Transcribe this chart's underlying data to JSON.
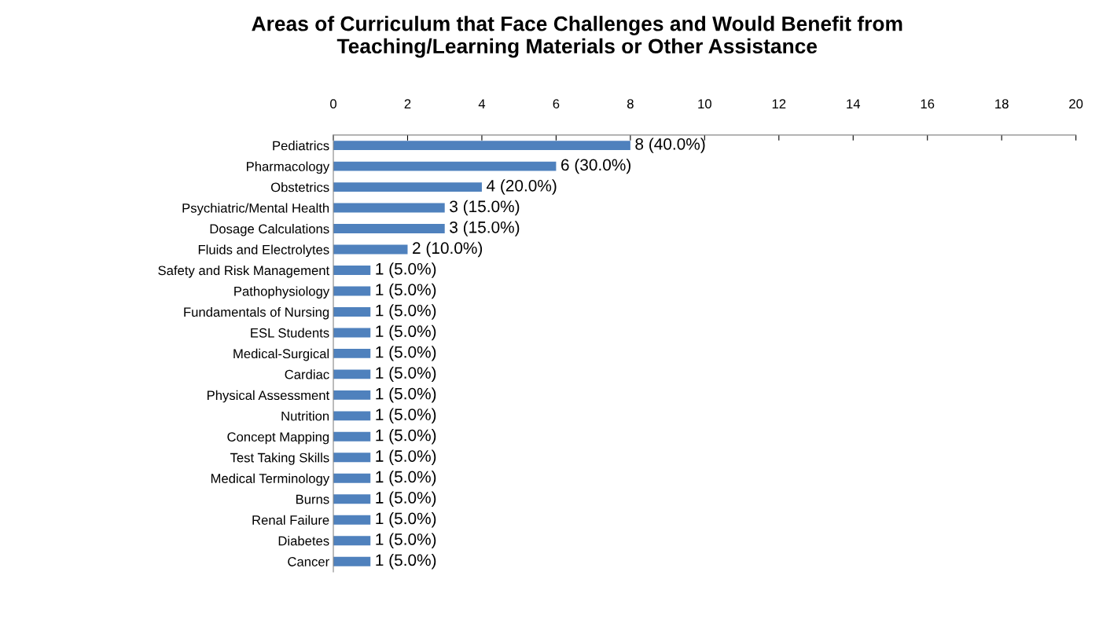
{
  "chart_data": {
    "type": "bar",
    "orientation": "horizontal",
    "title": "Areas of Curriculum that Face Challenges and Would Benefit from\nTeaching/Learning Materials or Other Assistance",
    "categories": [
      "Pediatrics",
      "Pharmacology",
      "Obstetrics",
      "Psychiatric/Mental Health",
      "Dosage Calculations",
      "Fluids and Electrolytes",
      "Safety and Risk Management",
      "Pathophysiology",
      "Fundamentals of Nursing",
      "ESL Students",
      "Medical-Surgical",
      "Cardiac",
      "Physical Assessment",
      "Nutrition",
      "Concept Mapping",
      "Test Taking Skills",
      "Medical Terminology",
      "Burns",
      "Renal Failure",
      "Diabetes",
      "Cancer"
    ],
    "values": [
      8,
      6,
      4,
      3,
      3,
      2,
      1,
      1,
      1,
      1,
      1,
      1,
      1,
      1,
      1,
      1,
      1,
      1,
      1,
      1,
      1
    ],
    "value_labels": [
      "8 (40.0%)",
      "6 (30.0%)",
      "4 (20.0%)",
      "3 (15.0%)",
      "3 (15.0%)",
      "2 (10.0%)",
      "1 (5.0%)",
      "1 (5.0%)",
      "1 (5.0%)",
      "1 (5.0%)",
      "1 (5.0%)",
      "1 (5.0%)",
      "1 (5.0%)",
      "1 (5.0%)",
      "1 (5.0%)",
      "1 (5.0%)",
      "1 (5.0%)",
      "1 (5.0%)",
      "1 (5.0%)",
      "1 (5.0%)",
      "1 (5.0%)"
    ],
    "color": "#4f81bd",
    "xlim": [
      0,
      20
    ],
    "xticks": [
      0,
      2,
      4,
      6,
      8,
      10,
      12,
      14,
      16,
      18,
      20
    ],
    "grid": false,
    "legend": false
  }
}
